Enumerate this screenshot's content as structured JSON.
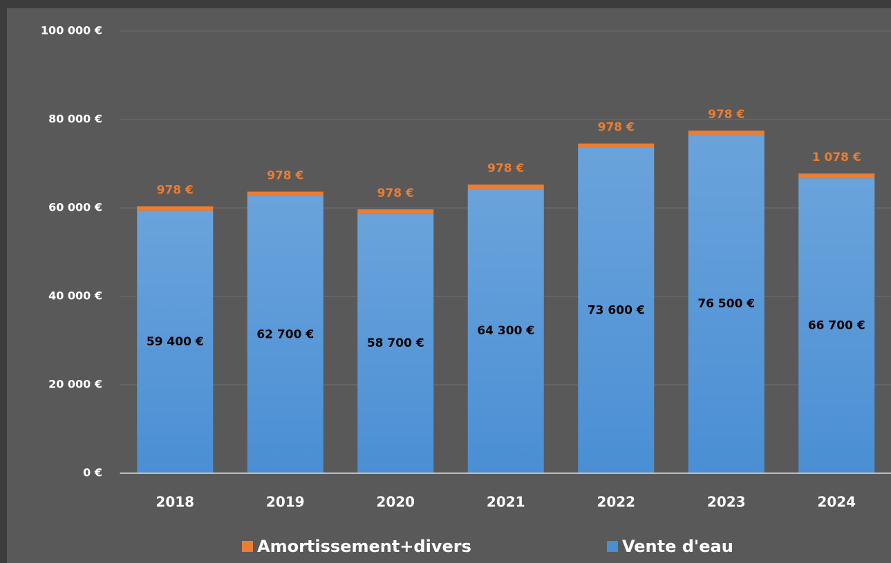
{
  "chart_data": {
    "type": "stacked_bar",
    "categories": [
      "2018",
      "2019",
      "2020",
      "2021",
      "2022",
      "2023",
      "2024"
    ],
    "series": [
      {
        "name": "Vente d'eau",
        "color": "#4a8fd4",
        "values": [
          59400,
          62700,
          58700,
          64300,
          73600,
          76500,
          66700
        ],
        "value_labels": [
          "59 400 €",
          "62 700 €",
          "58 700 €",
          "64 300 €",
          "73 600 €",
          "76 500 €",
          "66 700 €"
        ]
      },
      {
        "name": "Amortissement+divers",
        "color": "#ed7d31",
        "values": [
          978,
          978,
          978,
          978,
          978,
          978,
          1078
        ],
        "value_labels": [
          "978 €",
          "978 €",
          "978 €",
          "978 €",
          "978 €",
          "978 €",
          "1 078 €"
        ]
      }
    ],
    "ylim": [
      0,
      100000
    ],
    "yticks": [
      {
        "value": 0,
        "label": "0 €"
      },
      {
        "value": 20000,
        "label": "20 000 €"
      },
      {
        "value": 40000,
        "label": "40 000 €"
      },
      {
        "value": 60000,
        "label": "60 000 €"
      },
      {
        "value": 80000,
        "label": "80 000 €"
      },
      {
        "value": 100000,
        "label": "100 000 €"
      }
    ],
    "grid": true
  }
}
